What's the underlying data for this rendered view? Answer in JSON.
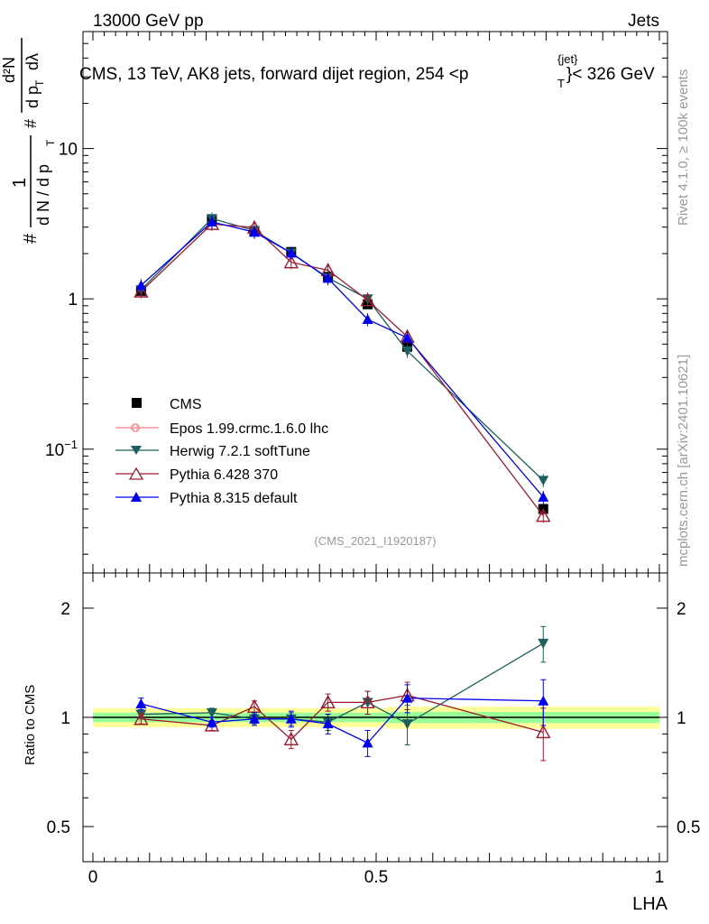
{
  "header": {
    "energy": "13000 GeV pp",
    "process": "Jets",
    "rivet": "Rivet 4.1.0, ≥ 100k events",
    "mcplots": "mcplots.cern.ch [arXiv:2401.10621]",
    "analysis_id": "(CMS_2021_I1920187)"
  },
  "chart_data": {
    "type": "scatter",
    "title": "CMS, 13 TeV, AK8 jets, forward dijet region, 254 <p",
    "title_sup": "{jet}",
    "title_sub": "T",
    "title_tail": "}< 326 GeV",
    "xlabel": "LHA",
    "ylabel_prefix": "#",
    "ylabel_one": "1",
    "ylabel_den": "d N / d p",
    "ylabel_den_sub": "T",
    "ylabel_num_top": "d²N",
    "ylabel_num_bot": "d p",
    "ylabel_num_bot_sub": "T",
    "ylabel_num_bot_tail": "dλ",
    "ylabel_hash2": "#",
    "ratio_ylabel": "Ratio to CMS",
    "xlim": [
      0,
      1
    ],
    "ylim": [
      0.015,
      60
    ],
    "ratio_ylim": [
      0.4,
      2.5
    ],
    "x_ticks": [
      {
        "value": 0,
        "label": "0"
      },
      {
        "value": 0.5,
        "label": "0.5"
      },
      {
        "value": 1,
        "label": "1"
      }
    ],
    "y_ticks": [
      {
        "value": 0.1,
        "base": "10",
        "exp": "−1"
      },
      {
        "value": 1,
        "base": "1",
        "exp": ""
      },
      {
        "value": 10,
        "base": "10",
        "exp": ""
      }
    ],
    "ratio_ticks": [
      {
        "value": 0.5,
        "label": "0.5"
      },
      {
        "value": 1,
        "label": "1"
      },
      {
        "value": 2,
        "label": "2"
      }
    ],
    "data": {
      "name": "CMS",
      "x": [
        0.085,
        0.21,
        0.285,
        0.35,
        0.415,
        0.485,
        0.555,
        0.795
      ],
      "y": [
        1.13,
        3.35,
        2.8,
        2.05,
        1.4,
        0.92,
        0.48,
        0.04
      ],
      "band_inner": [
        0.03,
        0.03,
        0.03,
        0.03,
        0.03,
        0.03,
        0.035,
        0.035
      ],
      "band_outer": [
        0.06,
        0.06,
        0.06,
        0.06,
        0.06,
        0.06,
        0.07,
        0.07
      ]
    },
    "series": [
      {
        "name": "Epos 1.99.crmc.1.6.0 lhc",
        "color": "#f08080",
        "marker": "cross",
        "y": [],
        "ratio": []
      },
      {
        "name": "Herwig 7.2.1 softTune",
        "color": "#1f5f5f",
        "marker": "tri-down",
        "y": [
          1.15,
          3.42,
          2.85,
          2.02,
          1.38,
          1.0,
          0.45,
          0.062
        ],
        "ratio": [
          1.02,
          1.03,
          0.99,
          0.99,
          0.97,
          1.1,
          0.96,
          1.6
        ],
        "ratio_err": [
          0.03,
          0.03,
          0.03,
          0.04,
          0.05,
          0.08,
          0.12,
          0.18
        ]
      },
      {
        "name": "Pythia 6.428 370",
        "color": "#9b1b30",
        "marker": "tri-up-open",
        "y": [
          1.12,
          3.15,
          2.98,
          1.75,
          1.55,
          0.98,
          0.56,
          0.036
        ],
        "ratio": [
          0.99,
          0.95,
          1.07,
          0.87,
          1.1,
          1.1,
          1.15,
          0.91
        ],
        "ratio_err": [
          0.03,
          0.03,
          0.04,
          0.05,
          0.06,
          0.08,
          0.1,
          0.15
        ]
      },
      {
        "name": "Pythia 8.315 default",
        "color": "#0000ee",
        "marker": "tri-up",
        "y": [
          1.23,
          3.25,
          2.78,
          2.02,
          1.37,
          0.73,
          0.55,
          0.048
        ],
        "ratio": [
          1.09,
          0.97,
          0.99,
          0.99,
          0.96,
          0.85,
          1.13,
          1.11
        ],
        "ratio_err": [
          0.04,
          0.03,
          0.04,
          0.05,
          0.06,
          0.07,
          0.1,
          0.16
        ]
      }
    ]
  }
}
